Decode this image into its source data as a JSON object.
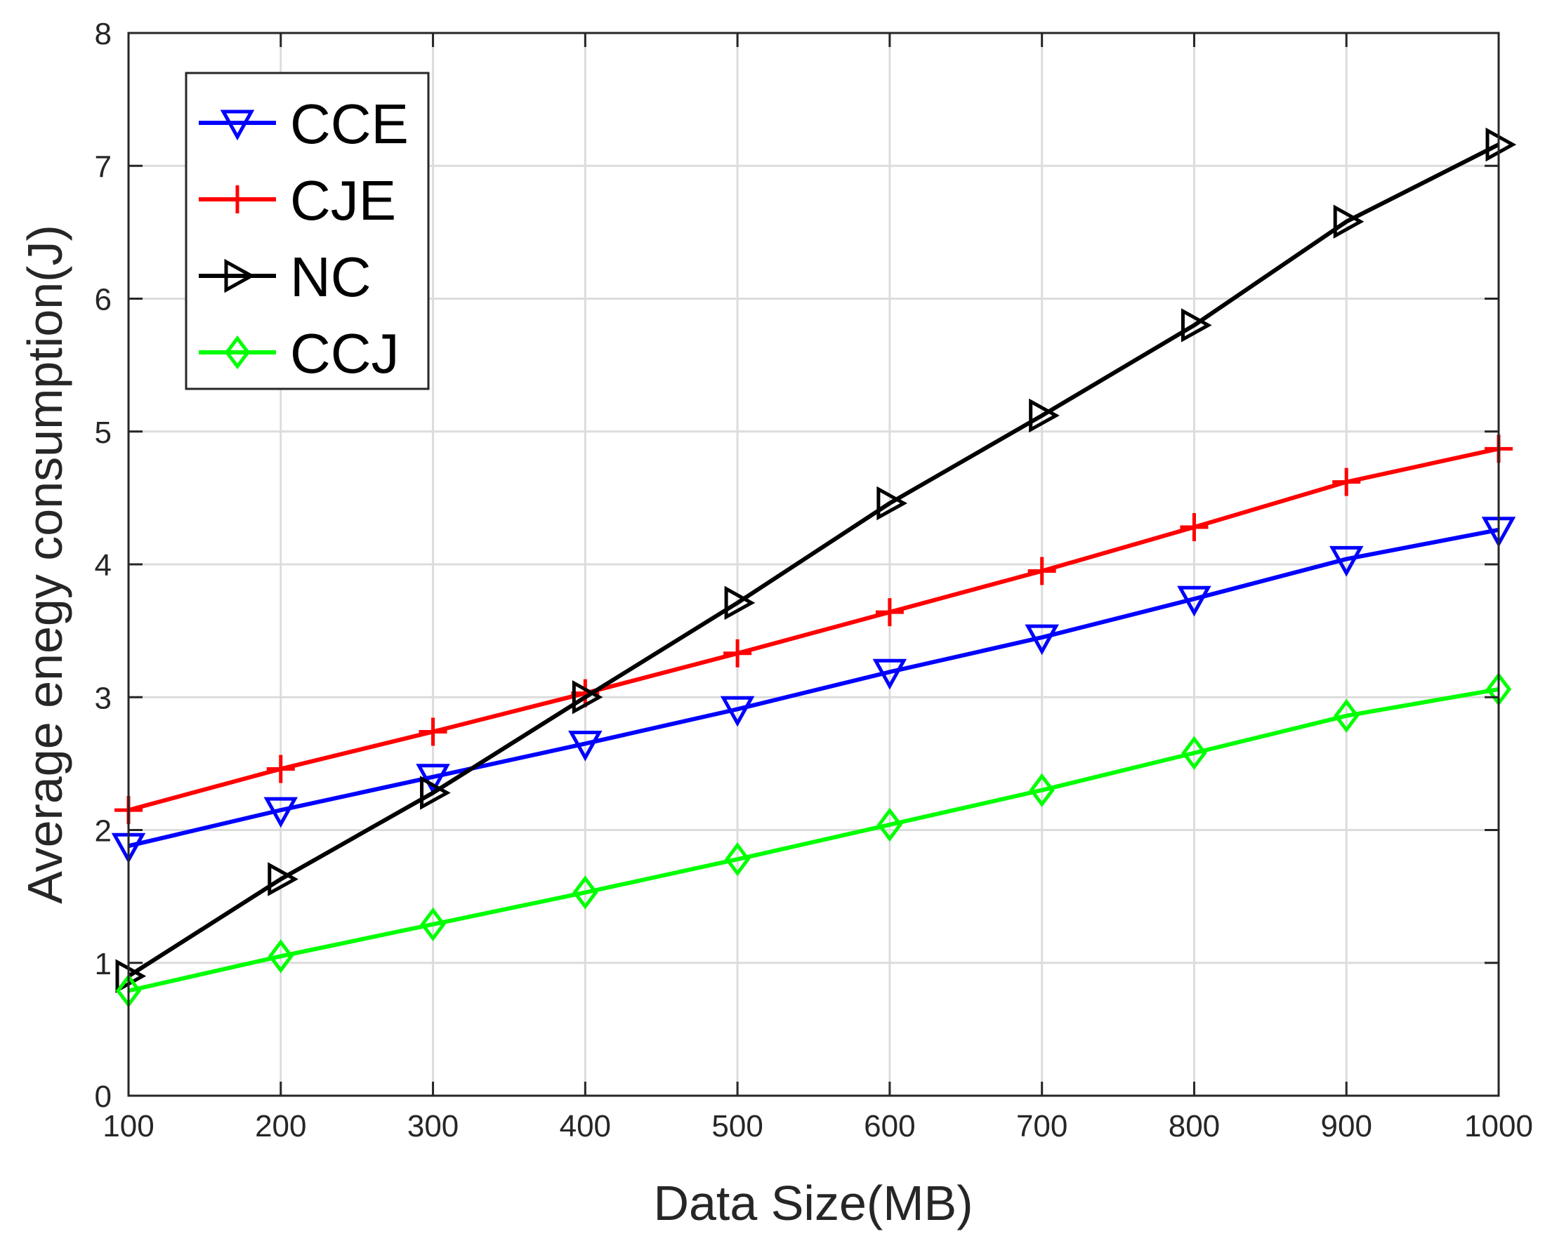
{
  "chart_data": {
    "type": "line",
    "title": "",
    "xlabel": "Data Size(MB)",
    "ylabel": "Average enegy consumption(J)",
    "x": [
      100,
      200,
      300,
      400,
      500,
      600,
      700,
      800,
      900,
      1000
    ],
    "xlim": [
      100,
      1000
    ],
    "ylim": [
      0,
      8
    ],
    "xticks": [
      100,
      200,
      300,
      400,
      500,
      600,
      700,
      800,
      900,
      1000
    ],
    "yticks": [
      0,
      1,
      2,
      3,
      4,
      5,
      6,
      7,
      8
    ],
    "grid": true,
    "legend_position": "top-left",
    "series": [
      {
        "name": "CCE",
        "color": "#0000ff",
        "marker": "triangle-down",
        "values": [
          1.88,
          2.15,
          2.4,
          2.65,
          2.91,
          3.19,
          3.45,
          3.74,
          4.04,
          4.26
        ]
      },
      {
        "name": "CJE",
        "color": "#ff0000",
        "marker": "plus",
        "values": [
          2.15,
          2.46,
          2.74,
          3.03,
          3.33,
          3.64,
          3.95,
          4.28,
          4.62,
          4.87
        ]
      },
      {
        "name": "NC",
        "color": "#000000",
        "marker": "triangle-right",
        "values": [
          0.9,
          1.63,
          2.28,
          3.0,
          3.71,
          4.46,
          5.12,
          5.8,
          6.58,
          7.16
        ]
      },
      {
        "name": "CCJ",
        "color": "#00ff00",
        "marker": "diamond",
        "values": [
          0.79,
          1.05,
          1.29,
          1.53,
          1.78,
          2.04,
          2.3,
          2.58,
          2.86,
          3.06
        ]
      }
    ]
  }
}
